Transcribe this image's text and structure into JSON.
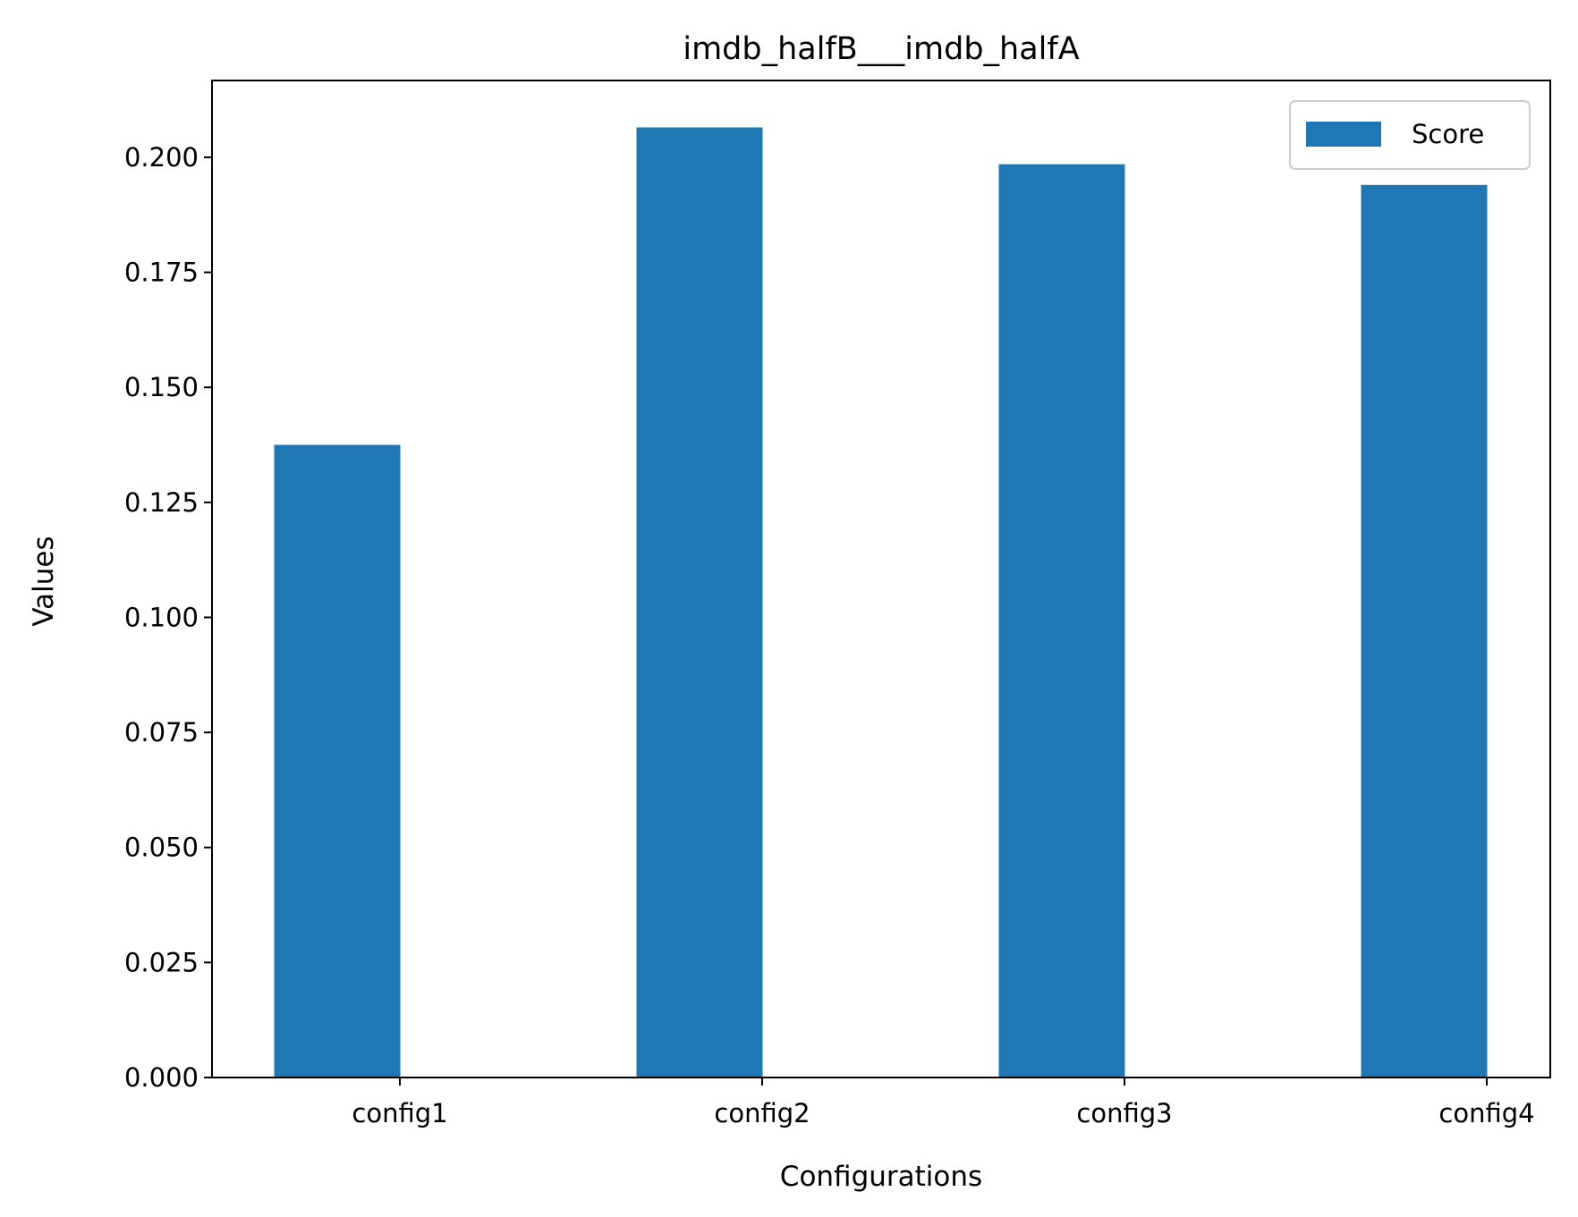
{
  "chart_data": {
    "type": "bar",
    "title": "imdb_halfB___imdb_halfA",
    "xlabel": "Configurations",
    "ylabel": "Values",
    "categories": [
      "config1",
      "config2",
      "config3",
      "config4"
    ],
    "series": [
      {
        "name": "Score",
        "values": [
          0.1375,
          0.2065,
          0.1985,
          0.194
        ],
        "color": "#1f77b4"
      }
    ],
    "ylim": [
      0,
      0.2167
    ],
    "yticks": [
      0.0,
      0.025,
      0.05,
      0.075,
      0.1,
      0.125,
      0.15,
      0.175,
      0.2
    ],
    "ytick_labels": [
      "0.000",
      "0.025",
      "0.050",
      "0.075",
      "0.100",
      "0.125",
      "0.150",
      "0.175",
      "0.200"
    ],
    "grid": false,
    "legend": {
      "position": "top-right",
      "label": "Score"
    }
  }
}
